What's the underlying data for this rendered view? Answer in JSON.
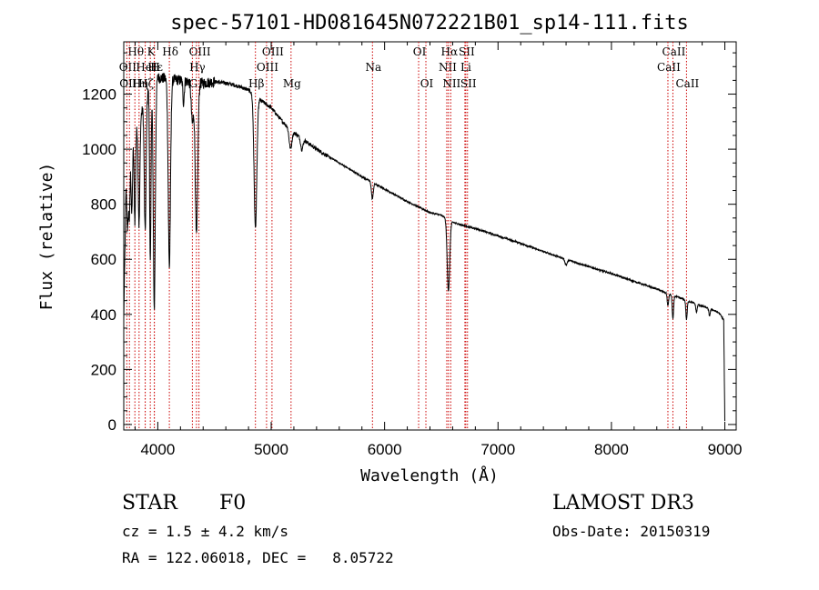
{
  "chart_data": {
    "type": "line",
    "title": "spec-57101-HD081645N072221B01_sp14-111.fits",
    "xlabel": "Wavelength (Å)",
    "ylabel": "Flux (relative)",
    "xlim": [
      3700,
      9100
    ],
    "ylim": [
      -20,
      1390
    ],
    "xticks": [
      4000,
      5000,
      6000,
      7000,
      8000,
      9000
    ],
    "yticks": [
      0,
      200,
      400,
      600,
      800,
      1000,
      1200
    ],
    "grid": false,
    "line_color": "#000000",
    "marker_color": "#cc0000",
    "continuum": {
      "x": [
        3700,
        3720,
        3760,
        3800,
        3850,
        3900,
        3950,
        4000,
        4100,
        4200,
        4300,
        4400,
        4500,
        4600,
        4700,
        4800,
        4900,
        5000,
        5100,
        5200,
        5400,
        5600,
        5800,
        6000,
        6200,
        6400,
        6500,
        6600,
        6700,
        6800,
        7000,
        7200,
        7400,
        7600,
        7800,
        8000,
        8200,
        8400,
        8500,
        8600,
        8700,
        8800,
        8900,
        8950,
        8990,
        9000
      ],
      "y": [
        380,
        860,
        1010,
        1060,
        1120,
        1200,
        1250,
        1260,
        1255,
        1250,
        1245,
        1240,
        1245,
        1240,
        1230,
        1215,
        1180,
        1150,
        1100,
        1060,
        1000,
        950,
        900,
        855,
        810,
        770,
        760,
        735,
        722,
        712,
        685,
        658,
        628,
        600,
        573,
        548,
        520,
        492,
        475,
        460,
        445,
        430,
        415,
        405,
        380,
        10
      ]
    },
    "absorption_features": [
      {
        "center": 3734,
        "depth": 200,
        "width": 6
      },
      {
        "center": 3750,
        "depth": 220,
        "width": 6
      },
      {
        "center": 3771,
        "depth": 260,
        "width": 6
      },
      {
        "center": 3798,
        "depth": 320,
        "width": 6
      },
      {
        "center": 3835,
        "depth": 380,
        "width": 7
      },
      {
        "center": 3889,
        "depth": 480,
        "width": 8
      },
      {
        "center": 3934,
        "depth": 650,
        "width": 6
      },
      {
        "center": 3969,
        "depth": 830,
        "width": 9
      },
      {
        "center": 4102,
        "depth": 680,
        "width": 10
      },
      {
        "center": 4227,
        "depth": 80,
        "width": 6
      },
      {
        "center": 4305,
        "depth": 150,
        "width": 10
      },
      {
        "center": 4341,
        "depth": 560,
        "width": 11
      },
      {
        "center": 4861,
        "depth": 480,
        "width": 12
      },
      {
        "center": 5170,
        "depth": 70,
        "width": 12
      },
      {
        "center": 5270,
        "depth": 40,
        "width": 10
      },
      {
        "center": 5892,
        "depth": 60,
        "width": 8
      },
      {
        "center": 6563,
        "depth": 260,
        "width": 11
      },
      {
        "center": 7600,
        "depth": 20,
        "width": 10
      },
      {
        "center": 8498,
        "depth": 45,
        "width": 6
      },
      {
        "center": 8542,
        "depth": 85,
        "width": 6
      },
      {
        "center": 8662,
        "depth": 70,
        "width": 6
      },
      {
        "center": 8750,
        "depth": 30,
        "width": 6
      },
      {
        "center": 8865,
        "depth": 25,
        "width": 6
      }
    ],
    "line_markers": [
      {
        "label": "Hθ",
        "wavelength": 3798,
        "row": 1
      },
      {
        "label": "OII",
        "wavelength": 3727,
        "row": 2
      },
      {
        "label": "OIII",
        "wavelength": 3750,
        "row": 3
      },
      {
        "label": "Hη",
        "wavelength": 3835,
        "row": 3
      },
      {
        "label": "HeI",
        "wavelength": 3889,
        "row": 2
      },
      {
        "label": "Hζ",
        "wavelength": 3889,
        "row": 3
      },
      {
        "label": "K",
        "wavelength": 3934,
        "row": 1
      },
      {
        "label": "H",
        "wavelength": 3969,
        "row": 2
      },
      {
        "label": "Hε",
        "wavelength": 3970,
        "row": 2
      },
      {
        "label": "Hδ",
        "wavelength": 4102,
        "row": 1
      },
      {
        "label": "G",
        "wavelength": 4305,
        "row": 3
      },
      {
        "label": "OIII",
        "wavelength": 4363,
        "row": 1
      },
      {
        "label": "Hγ",
        "wavelength": 4341,
        "row": 2
      },
      {
        "label": "Hβ",
        "wavelength": 4861,
        "row": 3
      },
      {
        "label": "OIII",
        "wavelength": 5007,
        "row": 1
      },
      {
        "label": "OIII",
        "wavelength": 4959,
        "row": 2
      },
      {
        "label": "Mg",
        "wavelength": 5175,
        "row": 3
      },
      {
        "label": "Na",
        "wavelength": 5893,
        "row": 2
      },
      {
        "label": "OI",
        "wavelength": 6300,
        "row": 1
      },
      {
        "label": "OI",
        "wavelength": 6364,
        "row": 3
      },
      {
        "label": "Hα",
        "wavelength": 6563,
        "row": 1
      },
      {
        "label": "NII",
        "wavelength": 6548,
        "row": 2
      },
      {
        "label": "NII",
        "wavelength": 6583,
        "row": 3
      },
      {
        "label": "SII",
        "wavelength": 6716,
        "row": 1
      },
      {
        "label": "Li",
        "wavelength": 6708,
        "row": 2
      },
      {
        "label": "SII",
        "wavelength": 6731,
        "row": 3
      },
      {
        "label": "CaII",
        "wavelength": 8542,
        "row": 1
      },
      {
        "label": "CaII",
        "wavelength": 8498,
        "row": 2
      },
      {
        "label": "CaII",
        "wavelength": 8662,
        "row": 3
      }
    ]
  },
  "info": {
    "object_class": "STAR",
    "subclass": "F0",
    "survey": "LAMOST DR3",
    "cz": "cz = 1.5 ± 4.2 km/s",
    "obs_date": "Obs-Date: 20150319",
    "coords": "RA = 122.06018, DEC =   8.05722"
  }
}
